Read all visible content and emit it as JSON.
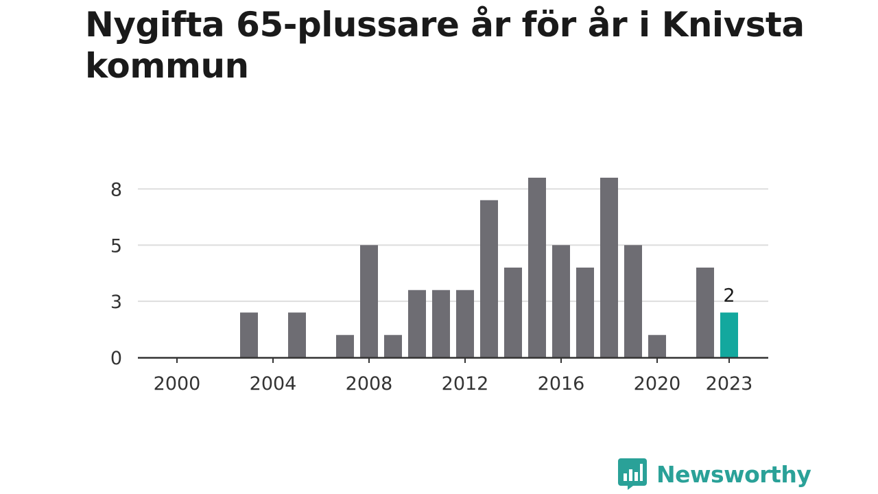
{
  "title": "Nygifta 65-plussare år för år i Knivsta kommun",
  "brand": {
    "name": "Newsworthy",
    "icon": "bar-chart-speech-bubble-icon"
  },
  "colors": {
    "bar": "#6e6d73",
    "highlight": "#13a89e",
    "grid": "#dddddd",
    "axis": "#333333",
    "brand": "#2aa198"
  },
  "chart_data": {
    "type": "bar",
    "title": "Nygifta 65-plussare år för år i Knivsta kommun",
    "xlabel": "",
    "ylabel": "",
    "x": [
      2000,
      2001,
      2002,
      2003,
      2004,
      2005,
      2006,
      2007,
      2008,
      2009,
      2010,
      2011,
      2012,
      2013,
      2014,
      2015,
      2016,
      2017,
      2018,
      2019,
      2020,
      2021,
      2022,
      2023
    ],
    "values": [
      0,
      0,
      0,
      2,
      0,
      2,
      0,
      1,
      5,
      1,
      3,
      3,
      3,
      7,
      4,
      8,
      5,
      4,
      8,
      5,
      1,
      0,
      4,
      2
    ],
    "x_ticks": [
      "2000",
      "2004",
      "2008",
      "2012",
      "2016",
      "2020",
      "2023"
    ],
    "y_ticks": [
      "0",
      "3",
      "5",
      "8"
    ],
    "y_tick_values": [
      0,
      2.5,
      5,
      7.5
    ],
    "ylim": [
      0,
      8
    ],
    "highlight": {
      "year": 2023,
      "label": "2"
    },
    "grid": true,
    "legend": "none"
  }
}
